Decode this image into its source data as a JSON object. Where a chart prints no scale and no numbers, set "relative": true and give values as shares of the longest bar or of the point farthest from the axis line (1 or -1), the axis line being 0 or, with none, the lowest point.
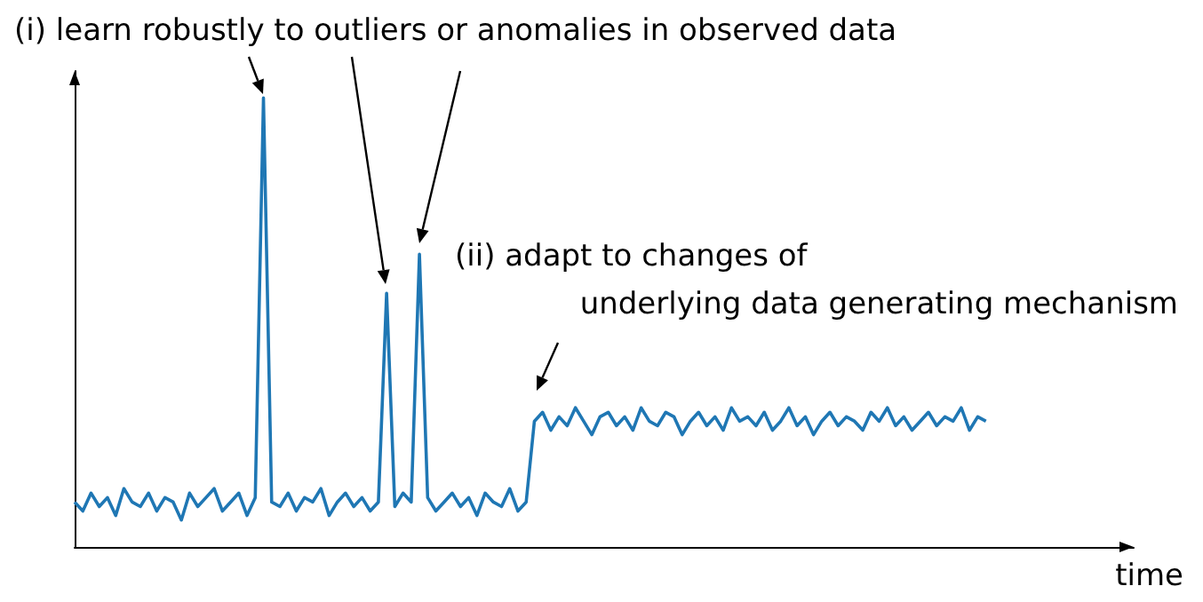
{
  "chart_data": {
    "type": "line",
    "relative": true,
    "xlabel": "time",
    "grid": false,
    "marker": "none",
    "line_style": "solid",
    "annotations": [
      "(i) learn robustly to outliers or anomalies in observed data",
      "(ii) adapt to changes of\nunderlying data generating mechanism"
    ],
    "categories": [
      null,
      null,
      null,
      null,
      null,
      null,
      null,
      null,
      null,
      null,
      null,
      null,
      null,
      null,
      null,
      null,
      null,
      null,
      null,
      null,
      null,
      null,
      null,
      null,
      null,
      null,
      null,
      null,
      null,
      null,
      null,
      null,
      null,
      null,
      null,
      null,
      null,
      null,
      null,
      null,
      null,
      null,
      null,
      null,
      null,
      null,
      null,
      null,
      null,
      null,
      null,
      null,
      null,
      null,
      null,
      null,
      null,
      null,
      null,
      null,
      null,
      null,
      null,
      null,
      null,
      null,
      null,
      null,
      null,
      null,
      null,
      null,
      null,
      null,
      null,
      null,
      null,
      null,
      null,
      null,
      null,
      null,
      null,
      null,
      null,
      null,
      null,
      null,
      null,
      null,
      null,
      null,
      null,
      null,
      null,
      null,
      null,
      null,
      null,
      null,
      null,
      null,
      null,
      null,
      null,
      null,
      null,
      null,
      null,
      null,
      null,
      null,
      null,
      null,
      null,
      null,
      null,
      null,
      null,
      null,
      null,
      null,
      null,
      null,
      null,
      null,
      null,
      null,
      null,
      null
    ],
    "series": [
      {
        "color": "#1f77b4",
        "values": [
          0.1,
          0.08,
          0.12,
          0.09,
          0.11,
          0.07,
          0.13,
          0.1,
          0.09,
          0.12,
          0.08,
          0.11,
          0.1,
          0.06,
          0.12,
          0.09,
          0.11,
          0.13,
          0.08,
          0.1,
          0.12,
          0.07,
          0.11,
          1.0,
          0.1,
          0.09,
          0.12,
          0.08,
          0.11,
          0.1,
          0.13,
          0.07,
          0.1,
          0.12,
          0.09,
          0.11,
          0.08,
          0.1,
          0.565,
          0.09,
          0.12,
          0.1,
          0.652,
          0.11,
          0.08,
          0.1,
          0.12,
          0.09,
          0.11,
          0.07,
          0.12,
          0.1,
          0.09,
          0.13,
          0.08,
          0.1,
          0.28,
          0.3,
          0.26,
          0.29,
          0.27,
          0.31,
          0.28,
          0.25,
          0.29,
          0.3,
          0.27,
          0.29,
          0.26,
          0.31,
          0.28,
          0.27,
          0.3,
          0.29,
          0.25,
          0.28,
          0.3,
          0.27,
          0.29,
          0.26,
          0.31,
          0.28,
          0.29,
          0.27,
          0.3,
          0.26,
          0.28,
          0.31,
          0.27,
          0.29,
          0.25,
          0.28,
          0.3,
          0.27,
          0.29,
          0.28,
          0.26,
          0.3,
          0.28,
          0.31,
          0.27,
          0.29,
          0.26,
          0.28,
          0.3,
          0.27,
          0.29,
          0.28,
          0.31,
          0.26,
          0.29,
          0.28,
          null,
          null,
          null,
          null,
          null,
          null,
          null,
          null,
          null,
          null,
          null,
          null,
          null,
          null,
          null,
          null,
          null,
          null
        ]
      }
    ]
  }
}
